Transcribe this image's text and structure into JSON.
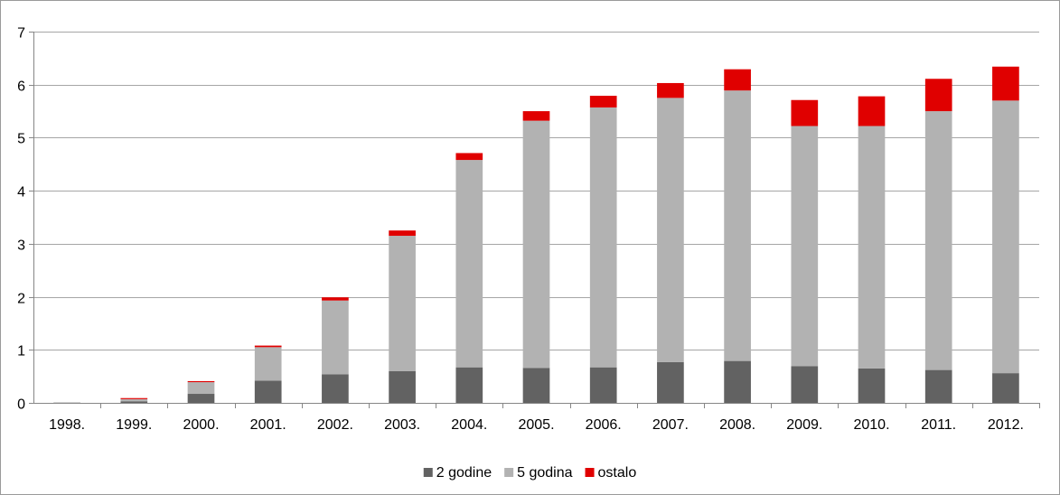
{
  "chart_data": {
    "type": "bar",
    "stacked": true,
    "title": "",
    "xlabel": "",
    "ylabel": "",
    "categories": [
      "1998.",
      "1999.",
      "2000.",
      "2001.",
      "2002.",
      "2003.",
      "2004.",
      "2005.",
      "2006.",
      "2007.",
      "2008.",
      "2009.",
      "2010.",
      "2011.",
      "2012."
    ],
    "series": [
      {
        "name": "2 godine",
        "color": "#626262",
        "values": [
          0.0,
          0.03,
          0.17,
          0.42,
          0.54,
          0.6,
          0.67,
          0.66,
          0.67,
          0.77,
          0.79,
          0.69,
          0.65,
          0.62,
          0.56
        ]
      },
      {
        "name": "5 godina",
        "color": "#b2b2b2",
        "values": [
          0.01,
          0.04,
          0.22,
          0.63,
          1.39,
          2.55,
          3.91,
          4.66,
          4.9,
          4.98,
          5.1,
          4.53,
          4.57,
          4.88,
          5.14
        ]
      },
      {
        "name": "ostalo",
        "color": "#e00000",
        "values": [
          0.0,
          0.02,
          0.02,
          0.03,
          0.06,
          0.1,
          0.13,
          0.18,
          0.22,
          0.28,
          0.4,
          0.49,
          0.56,
          0.61,
          0.64
        ]
      }
    ],
    "ylim": [
      0,
      7
    ],
    "yticks": [
      "0",
      "1",
      "2",
      "3",
      "4",
      "5",
      "6",
      "7"
    ],
    "grid": true,
    "legend_position": "bottom"
  }
}
